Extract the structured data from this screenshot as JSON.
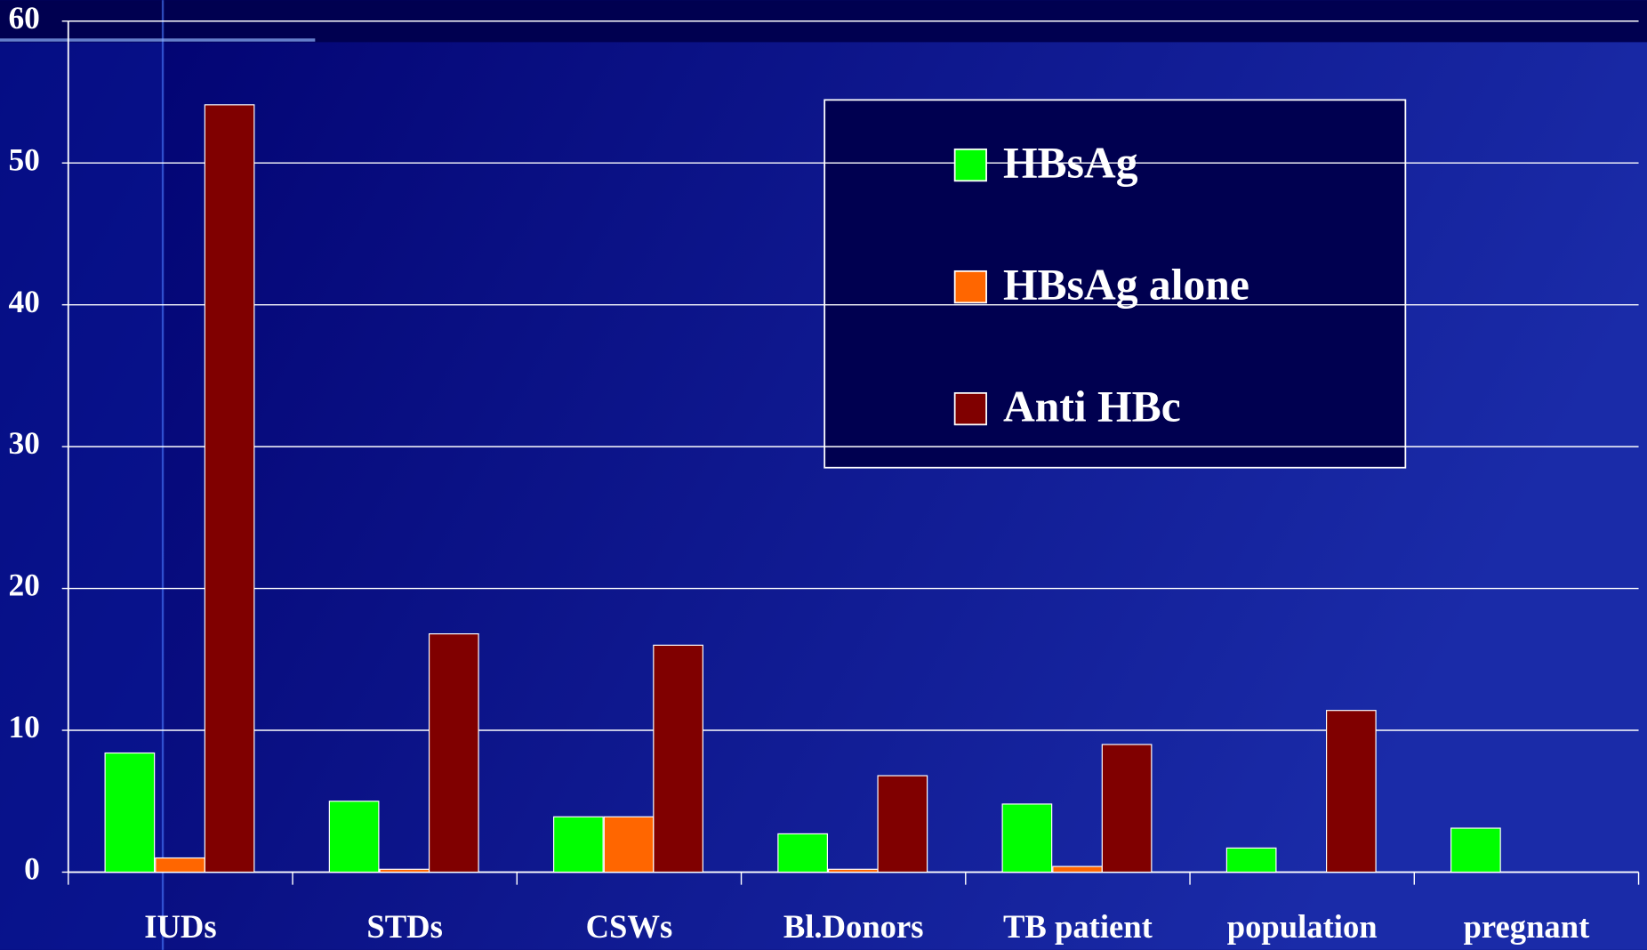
{
  "chart_data": {
    "type": "bar",
    "categories": [
      "IUDs",
      "STDs",
      "CSWs",
      "Bl.Donors",
      "TB patient",
      "population",
      "pregnant"
    ],
    "series": [
      {
        "name": "HBsAg",
        "color": "#00ff00",
        "values": [
          8.4,
          5.0,
          3.9,
          2.7,
          4.8,
          1.7,
          3.1
        ]
      },
      {
        "name": "HBsAg alone",
        "color": "#ff6600",
        "values": [
          1.0,
          0.2,
          3.9,
          0.2,
          0.4,
          null,
          null
        ]
      },
      {
        "name": "Anti HBc",
        "color": "#800000",
        "values": [
          54.1,
          16.8,
          16.0,
          6.8,
          9.0,
          11.4,
          null
        ]
      }
    ],
    "ylim": [
      0,
      60
    ],
    "yticks": [
      0,
      10,
      20,
      30,
      40,
      50,
      60
    ],
    "grid": true,
    "legend": "top-right"
  }
}
